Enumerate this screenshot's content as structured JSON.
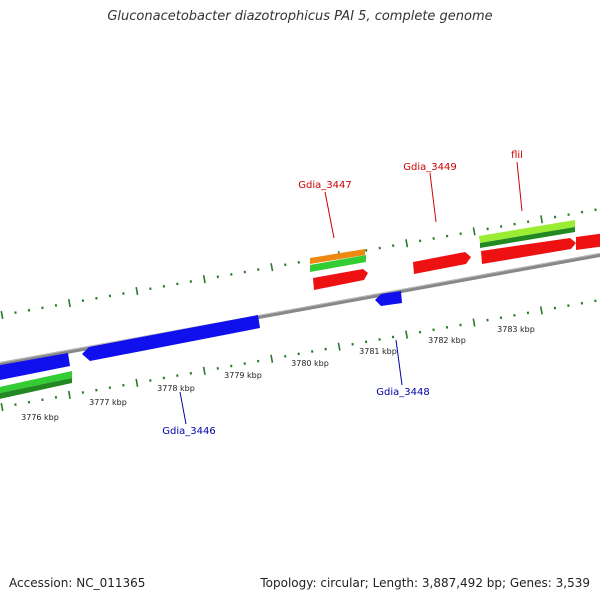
{
  "title": "Gluconacetobacter diazotrophicus PAI 5, complete genome",
  "footer": {
    "accession": "Accession: NC_011365",
    "summary": "Topology: circular; Length: 3,887,492 bp; Genes: 3,539"
  },
  "colors": {
    "backbone": "#888888",
    "tick": "#2a7a2a",
    "forward_label": "#cc0000",
    "reverse_label": "#0000aa",
    "blue": "#1010ee",
    "red": "#ee1111",
    "green": "#33cc33",
    "dark_green": "#228822",
    "light_green": "#99ee33",
    "orange": "#ee8811"
  },
  "ruler_labels": [
    "3776 kbp",
    "3777 kbp",
    "3778 kbp",
    "3779 kbp",
    "3780 kbp",
    "3781 kbp",
    "3782 kbp",
    "3783 kbp"
  ],
  "gene_labels": {
    "gdia_3447": "Gdia_3447",
    "gdia_3449": "Gdia_3449",
    "flil": "flil",
    "gdia_3446": "Gdia_3446",
    "gdia_3448": "Gdia_3448"
  }
}
